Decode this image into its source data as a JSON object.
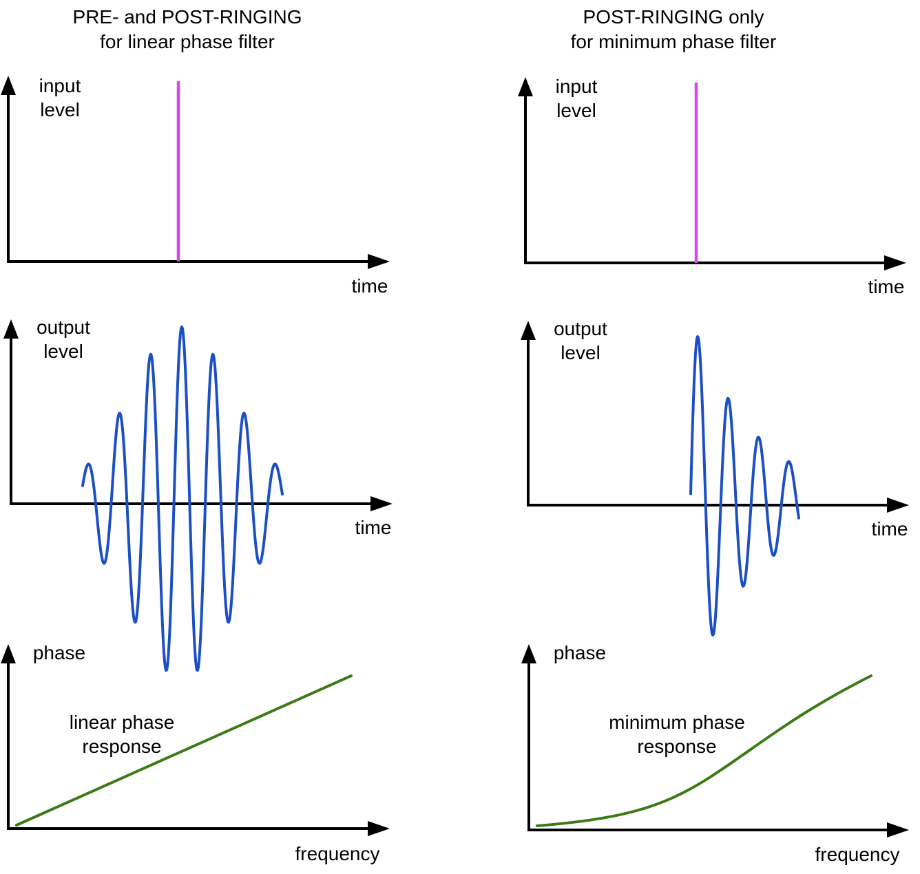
{
  "colors": {
    "impulse": "#d946ef",
    "wave": "#1d4fc4",
    "phase_curve": "#3c7a18",
    "axis": "#000000"
  },
  "left": {
    "title_line1": "PRE- and POST-RINGING",
    "title_line2": "for linear phase filter",
    "input": {
      "ylabel_line1": "input",
      "ylabel_line2": "level",
      "xlabel": "time"
    },
    "output": {
      "ylabel_line1": "output",
      "ylabel_line2": "level",
      "xlabel": "time"
    },
    "phase": {
      "ylabel": "phase",
      "xlabel": "frequency",
      "curve_label_line1": "linear phase",
      "curve_label_line2": "response"
    }
  },
  "right": {
    "title_line1": "POST-RINGING only",
    "title_line2": "for minimum phase filter",
    "input": {
      "ylabel_line1": "input",
      "ylabel_line2": "level",
      "xlabel": "time"
    },
    "output": {
      "ylabel_line1": "output",
      "ylabel_line2": "level",
      "xlabel": "time"
    },
    "phase": {
      "ylabel": "phase",
      "xlabel": "frequency",
      "curve_label_line1": "minimum phase",
      "curve_label_line2": "response"
    }
  }
}
